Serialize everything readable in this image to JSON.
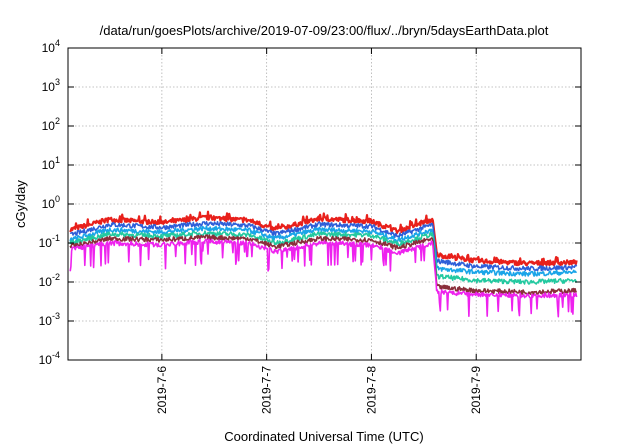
{
  "chart_data": {
    "type": "line",
    "title": "/data/run/goesPlots/archive/2019-07-09/23:00/flux/../bryn/5daysEarthData.plot",
    "xlabel": "Coordinated Universal Time (UTC)",
    "ylabel": "cGy/day",
    "yscale": "log",
    "ylim": [
      0.0001,
      10000
    ],
    "xlim": [
      "2019-07-05T02:30",
      "2019-07-10T00:00"
    ],
    "y_ticks": [
      {
        "base": "10",
        "exp": "4"
      },
      {
        "base": "10",
        "exp": "3"
      },
      {
        "base": "10",
        "exp": "2"
      },
      {
        "base": "10",
        "exp": "1"
      },
      {
        "base": "10",
        "exp": "0"
      },
      {
        "base": "10",
        "exp": "-1"
      },
      {
        "base": "10",
        "exp": "-2"
      },
      {
        "base": "10",
        "exp": "-3"
      },
      {
        "base": "10",
        "exp": "-4"
      }
    ],
    "x_ticks": [
      "2019-7-6",
      "2019-7-7",
      "2019-7-8",
      "2019-7-9"
    ],
    "grid": true,
    "legend": "none",
    "series": [
      {
        "color": "#e8201b",
        "x": [
          "2019-07-05T03:00",
          "2019-07-05T12:00",
          "2019-07-06T00:00",
          "2019-07-06T10:00",
          "2019-07-06T20:00",
          "2019-07-07T02:00",
          "2019-07-07T12:00",
          "2019-07-08T00:00",
          "2019-07-08T06:00",
          "2019-07-08T14:00",
          "2019-07-08T15:00",
          "2019-07-09T00:00",
          "2019-07-09T12:00",
          "2019-07-09T23:00"
        ],
        "values": [
          0.22,
          0.4,
          0.33,
          0.45,
          0.38,
          0.22,
          0.42,
          0.36,
          0.2,
          0.4,
          0.05,
          0.035,
          0.03,
          0.032
        ]
      },
      {
        "color": "#2e5fd8",
        "x": [
          "2019-07-05T03:00",
          "2019-07-05T12:00",
          "2019-07-06T00:00",
          "2019-07-06T10:00",
          "2019-07-06T20:00",
          "2019-07-07T02:00",
          "2019-07-07T12:00",
          "2019-07-08T00:00",
          "2019-07-08T06:00",
          "2019-07-08T14:00",
          "2019-07-08T15:00",
          "2019-07-09T00:00",
          "2019-07-09T12:00",
          "2019-07-09T23:00"
        ],
        "values": [
          0.16,
          0.3,
          0.25,
          0.32,
          0.28,
          0.17,
          0.3,
          0.27,
          0.15,
          0.3,
          0.035,
          0.025,
          0.022,
          0.024
        ]
      },
      {
        "color": "#1aa5e8",
        "x": [
          "2019-07-05T03:00",
          "2019-07-05T12:00",
          "2019-07-06T00:00",
          "2019-07-06T10:00",
          "2019-07-06T20:00",
          "2019-07-07T02:00",
          "2019-07-07T12:00",
          "2019-07-08T00:00",
          "2019-07-08T06:00",
          "2019-07-08T14:00",
          "2019-07-08T15:00",
          "2019-07-09T00:00",
          "2019-07-09T12:00",
          "2019-07-09T23:00"
        ],
        "values": [
          0.12,
          0.22,
          0.19,
          0.24,
          0.21,
          0.13,
          0.22,
          0.2,
          0.12,
          0.22,
          0.022,
          0.018,
          0.016,
          0.018
        ]
      },
      {
        "color": "#22c9a0",
        "x": [
          "2019-07-05T03:00",
          "2019-07-05T12:00",
          "2019-07-06T00:00",
          "2019-07-06T10:00",
          "2019-07-06T20:00",
          "2019-07-07T02:00",
          "2019-07-07T12:00",
          "2019-07-08T00:00",
          "2019-07-08T06:00",
          "2019-07-08T14:00",
          "2019-07-08T15:00",
          "2019-07-09T00:00",
          "2019-07-09T12:00",
          "2019-07-09T23:00"
        ],
        "values": [
          0.1,
          0.17,
          0.15,
          0.18,
          0.16,
          0.1,
          0.17,
          0.16,
          0.095,
          0.17,
          0.014,
          0.011,
          0.01,
          0.011
        ]
      },
      {
        "color": "#8a2e3a",
        "x": [
          "2019-07-05T03:00",
          "2019-07-05T12:00",
          "2019-07-06T00:00",
          "2019-07-06T10:00",
          "2019-07-06T20:00",
          "2019-07-07T02:00",
          "2019-07-07T12:00",
          "2019-07-08T00:00",
          "2019-07-08T06:00",
          "2019-07-08T14:00",
          "2019-07-08T15:00",
          "2019-07-09T00:00",
          "2019-07-09T12:00",
          "2019-07-09T23:00"
        ],
        "values": [
          0.08,
          0.13,
          0.12,
          0.14,
          0.13,
          0.08,
          0.13,
          0.12,
          0.075,
          0.13,
          0.0075,
          0.006,
          0.0055,
          0.006
        ]
      },
      {
        "color": "#ee22ee",
        "x": [
          "2019-07-05T03:00",
          "2019-07-05T12:00",
          "2019-07-06T00:00",
          "2019-07-06T10:00",
          "2019-07-06T20:00",
          "2019-07-07T02:00",
          "2019-07-07T12:00",
          "2019-07-08T00:00",
          "2019-07-08T06:00",
          "2019-07-08T14:00",
          "2019-07-08T15:00",
          "2019-07-09T00:00",
          "2019-07-09T12:00",
          "2019-07-09T23:00"
        ],
        "values": [
          0.07,
          0.1,
          0.09,
          0.11,
          0.1,
          0.06,
          0.1,
          0.09,
          0.055,
          0.1,
          0.0055,
          0.0048,
          0.0045,
          0.0047
        ]
      }
    ]
  }
}
